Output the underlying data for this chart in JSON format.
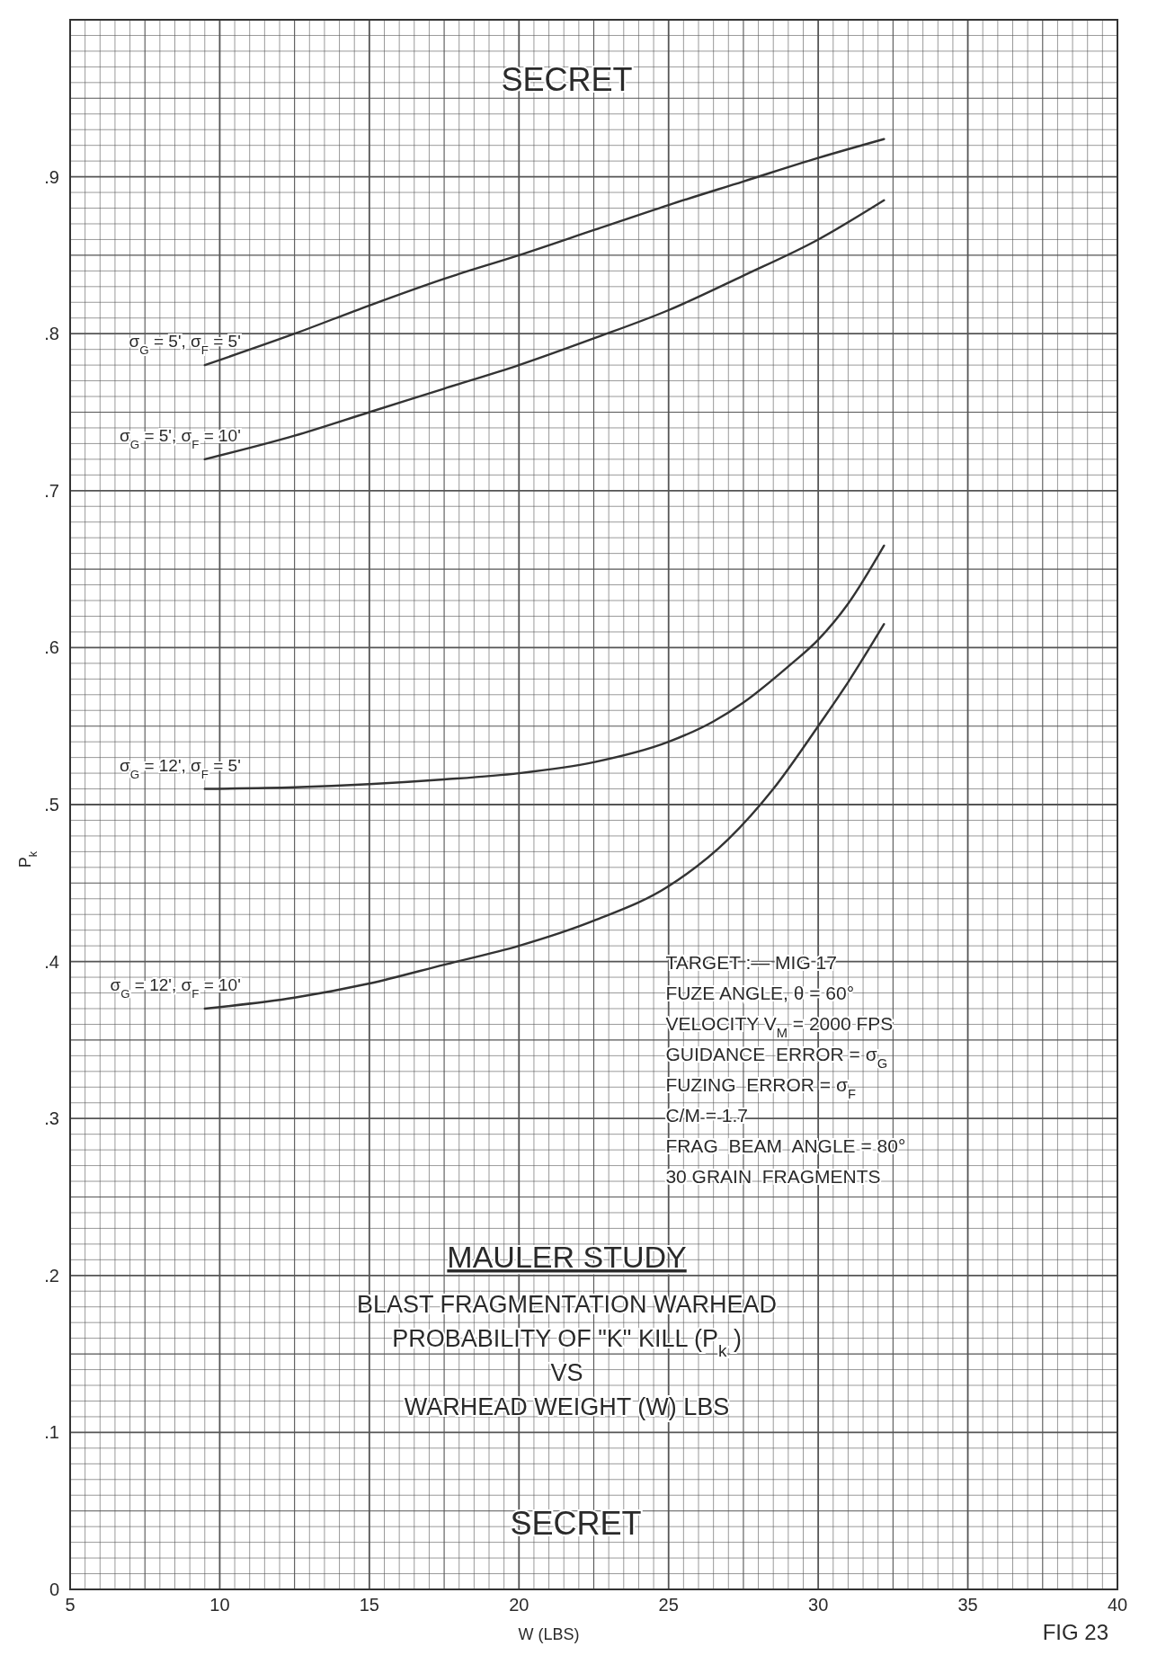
{
  "chart_data": {
    "type": "line",
    "title": "MAULER STUDY",
    "subtitle": "BLAST FRAGMENTATION WARHEAD\nPROBABILITY OF \"K\" KILL (P$_{k}$)\nVS\nWARHEAD  WEIGHT (W) LBS",
    "xlabel": "W (LBS)",
    "ylabel": "P$_{k}$",
    "xlim": [
      5,
      40
    ],
    "xticks": [
      5,
      10,
      15,
      20,
      25,
      30,
      35,
      40
    ],
    "ylim": [
      0,
      1
    ],
    "yticks": [
      {
        "value": 0,
        "label": "0"
      },
      {
        "value": 0.1,
        "label": ".1"
      },
      {
        "value": 0.2,
        "label": ".2"
      },
      {
        "value": 0.3,
        "label": ".3"
      },
      {
        "value": 0.4,
        "label": ".4"
      },
      {
        "value": 0.5,
        "label": ".5"
      },
      {
        "value": 0.6,
        "label": ".6"
      },
      {
        "value": 0.7,
        "label": ".7"
      },
      {
        "value": 0.8,
        "label": ".8"
      },
      {
        "value": 0.9,
        "label": ".9"
      }
    ],
    "grid": true,
    "marker": "none",
    "line_style": "solid",
    "series": [
      {
        "name": "σ$_{G}$ = 5', σ$_{F}$ = 5'",
        "color": "#333333",
        "x": [
          9.5,
          12.5,
          15,
          17.5,
          20,
          22.5,
          25,
          27.5,
          30,
          32.2
        ],
        "values": [
          0.78,
          0.8,
          0.818,
          0.835,
          0.85,
          0.866,
          0.882,
          0.897,
          0.912,
          0.924
        ]
      },
      {
        "name": "σ$_{G}$ = 5', σ$_{F}$ = 10'",
        "color": "#333333",
        "x": [
          9.5,
          12.5,
          15,
          17.5,
          20,
          22.5,
          25,
          27.5,
          30,
          32.2
        ],
        "values": [
          0.72,
          0.735,
          0.75,
          0.765,
          0.78,
          0.797,
          0.815,
          0.837,
          0.86,
          0.885
        ]
      },
      {
        "name": "σ$_{G}$ = 12', σ$_{F}$ = 5'",
        "color": "#333333",
        "x": [
          9.5,
          12.5,
          15,
          17.5,
          20,
          22.5,
          25,
          26.5,
          27.5,
          29,
          30,
          31,
          32.2
        ],
        "values": [
          0.51,
          0.511,
          0.513,
          0.516,
          0.52,
          0.527,
          0.54,
          0.553,
          0.565,
          0.588,
          0.605,
          0.628,
          0.665
        ]
      },
      {
        "name": "σ$_{G}$ = 12', σ$_{F}$ = 10'",
        "color": "#333333",
        "x": [
          9.5,
          12.5,
          15,
          17.5,
          20,
          22.5,
          25,
          27,
          28.5,
          30,
          31,
          32.2
        ],
        "values": [
          0.37,
          0.377,
          0.386,
          0.398,
          0.41,
          0.426,
          0.448,
          0.478,
          0.51,
          0.55,
          0.578,
          0.615
        ]
      }
    ],
    "annotations": [
      "SECRET",
      "TARGET :— MIG 17",
      "FUZE ANGLE, θ = 60°",
      "VELOCITY V$_{M}$= 2000 FPS",
      "GUIDANCE  ERROR = σ$_{G}$",
      "FUZING  ERROR = σ$_{F}$",
      "C/M = 1.7",
      "FRAG  BEAM  ANGLE = 80°",
      "30 GRAIN  FRAGMENTS",
      "SECRET",
      "FIG 23"
    ]
  }
}
